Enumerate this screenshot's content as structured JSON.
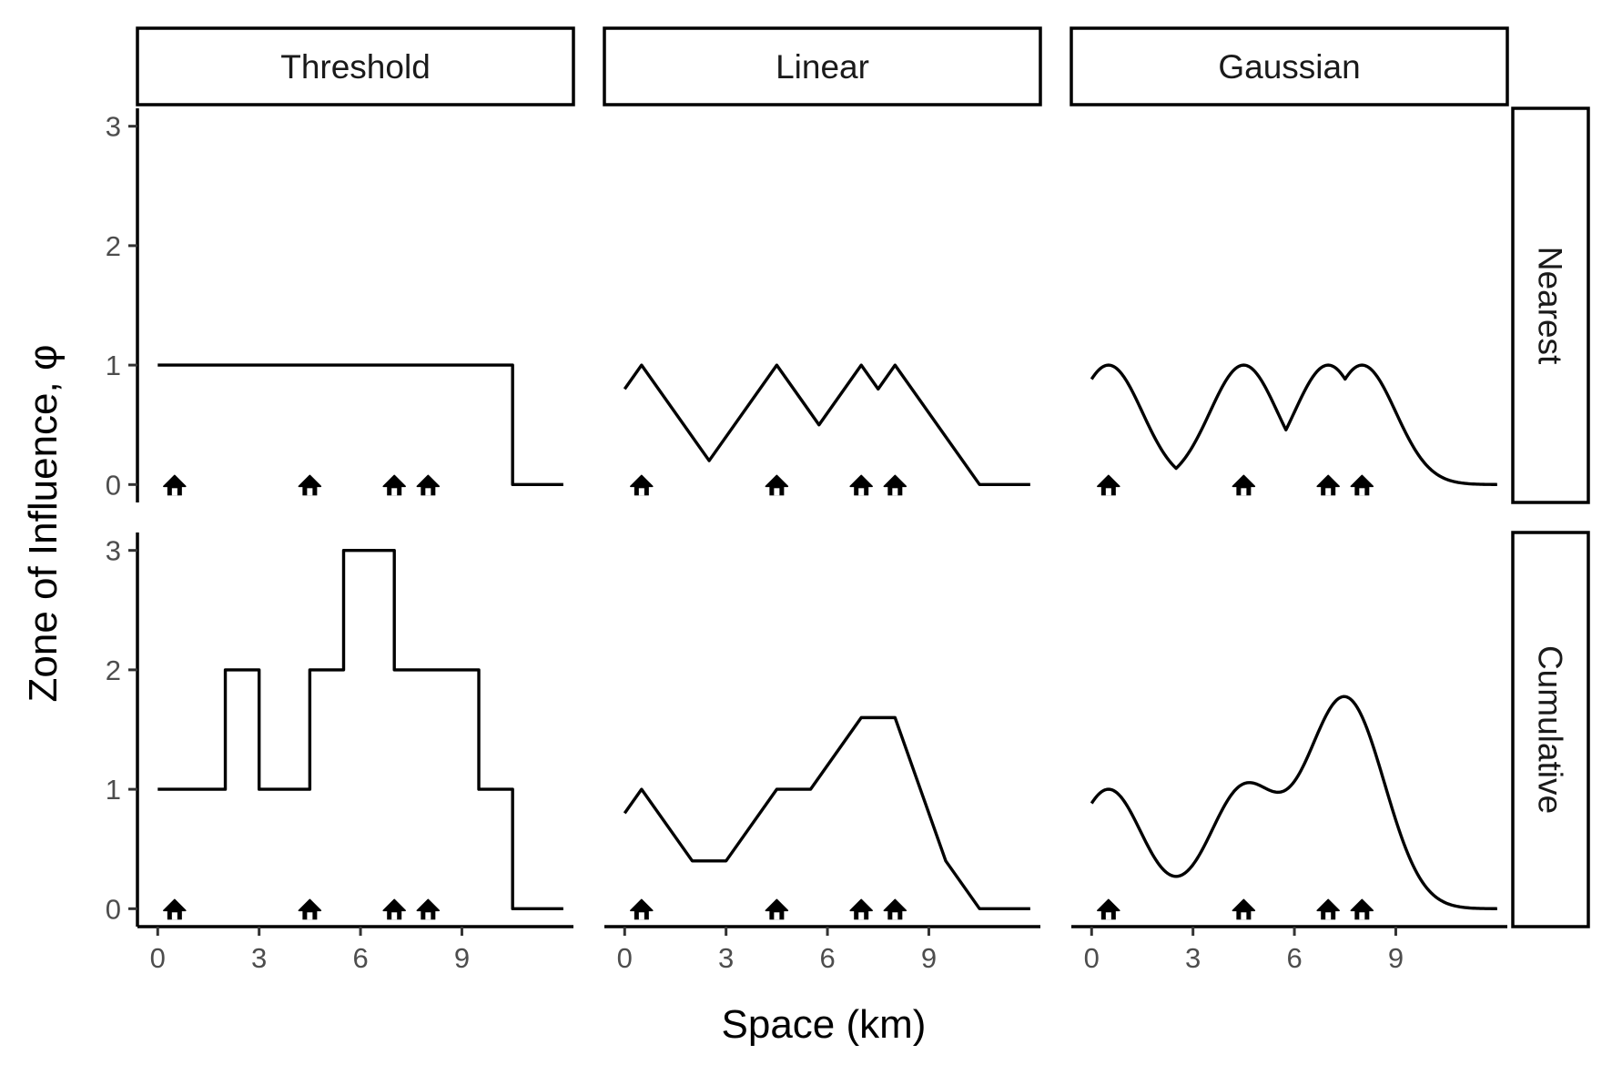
{
  "chart_data": {
    "type": "line",
    "xlabel": "Space (km)",
    "ylabel": "Zone of Influence, φ",
    "xlim": [
      -0.6,
      12.3
    ],
    "ylim": [
      -0.15,
      3.15
    ],
    "x_ticks": [
      0,
      3,
      6,
      9
    ],
    "x_tick_labels": [
      "0",
      "3",
      "6",
      "9"
    ],
    "y_ticks": [
      0,
      1,
      2,
      3
    ],
    "y_tick_labels": [
      "0",
      "1",
      "2",
      "3"
    ],
    "col_facets": [
      "Threshold",
      "Linear",
      "Gaussian"
    ],
    "row_facets": [
      "Nearest",
      "Cumulative"
    ],
    "grid": false,
    "point_marker": "house-icon",
    "point_x": [
      0.5,
      4.5,
      7.0,
      8.0
    ],
    "point_y": [
      0,
      0,
      0,
      0
    ],
    "panels": [
      {
        "row": "Nearest",
        "col": "Threshold",
        "x": [
          0,
          10.5,
          10.5,
          12
        ],
        "y": [
          1,
          1,
          0,
          0
        ]
      },
      {
        "row": "Nearest",
        "col": "Linear",
        "x": [
          0,
          0.5,
          2.5,
          4.5,
          5.75,
          7.0,
          7.5,
          8.0,
          10.5,
          12
        ],
        "y": [
          0.8,
          1,
          0.2,
          1,
          0.5,
          1,
          0.8,
          1,
          0,
          0
        ]
      },
      {
        "row": "Nearest",
        "col": "Gaussian",
        "sigma": 1.0,
        "x_range": [
          0,
          12
        ]
      },
      {
        "row": "Cumulative",
        "col": "Threshold",
        "x": [
          0,
          2,
          2,
          3,
          3,
          4.5,
          4.5,
          5.5,
          5.5,
          7,
          7,
          9.5,
          9.5,
          10.5,
          10.5,
          12
        ],
        "y": [
          1,
          1,
          2,
          2,
          1,
          1,
          2,
          2,
          3,
          3,
          2,
          2,
          1,
          1,
          0,
          0
        ]
      },
      {
        "row": "Cumulative",
        "col": "Linear",
        "x": [
          0,
          0.5,
          2,
          3,
          4.5,
          5.5,
          7,
          8,
          9.5,
          10.5,
          12
        ],
        "y": [
          0.8,
          1,
          0.4,
          0.4,
          1,
          1,
          1.6,
          1.6,
          0.4,
          0,
          0
        ]
      },
      {
        "row": "Cumulative",
        "col": "Gaussian",
        "sigma": 1.0,
        "x_range": [
          0,
          12
        ]
      }
    ]
  }
}
